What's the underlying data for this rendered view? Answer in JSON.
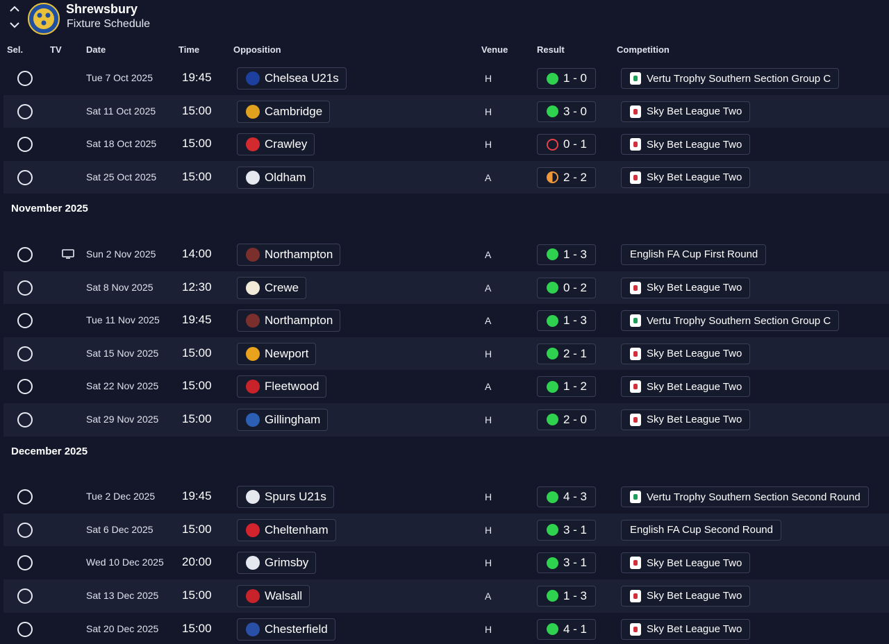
{
  "header": {
    "club_name": "Shrewsbury",
    "page_title": "Fixture Schedule"
  },
  "columns": {
    "sel": "Sel.",
    "tv": "TV",
    "date": "Date",
    "time": "Time",
    "opposition": "Opposition",
    "venue": "Venue",
    "result": "Result",
    "competition": "Competition"
  },
  "colors": {
    "background": "#14172a",
    "row_alt": "#1c2035",
    "win": "#2fd24f",
    "loss": "#e5404a",
    "draw": "#f0973a"
  },
  "sections": [
    {
      "month": "",
      "fixtures": [
        {
          "tv": false,
          "date": "Tue 7 Oct 2025",
          "time": "19:45",
          "opposition": "Chelsea U21s",
          "badge_color": "#1d3f9e",
          "venue": "H",
          "result_type": "win",
          "score": "1 - 0",
          "competition": "Vertu Trophy Southern Section Group C",
          "comp_logo": "vertu"
        },
        {
          "tv": false,
          "date": "Sat 11 Oct 2025",
          "time": "15:00",
          "opposition": "Cambridge",
          "badge_color": "#e0a21e",
          "venue": "H",
          "result_type": "win",
          "score": "3 - 0",
          "competition": "Sky Bet League Two",
          "comp_logo": "skybet"
        },
        {
          "tv": false,
          "date": "Sat 18 Oct 2025",
          "time": "15:00",
          "opposition": "Crawley",
          "badge_color": "#d22a2f",
          "venue": "H",
          "result_type": "loss",
          "score": "0 - 1",
          "competition": "Sky Bet League Two",
          "comp_logo": "skybet"
        },
        {
          "tv": false,
          "date": "Sat 25 Oct 2025",
          "time": "15:00",
          "opposition": "Oldham",
          "badge_color": "#e6e8f0",
          "venue": "A",
          "result_type": "draw",
          "score": "2 - 2",
          "competition": "Sky Bet League Two",
          "comp_logo": "skybet"
        }
      ]
    },
    {
      "month": "November 2025",
      "fixtures": [
        {
          "tv": true,
          "date": "Sun 2 Nov 2025",
          "time": "14:00",
          "opposition": "Northampton",
          "badge_color": "#7a2f2c",
          "venue": "A",
          "result_type": "win",
          "score": "1 - 3",
          "competition": "English FA Cup First Round",
          "comp_logo": "none"
        },
        {
          "tv": false,
          "date": "Sat 8 Nov 2025",
          "time": "12:30",
          "opposition": "Crewe",
          "badge_color": "#f2ead8",
          "venue": "A",
          "result_type": "win",
          "score": "0 - 2",
          "competition": "Sky Bet League Two",
          "comp_logo": "skybet"
        },
        {
          "tv": false,
          "date": "Tue 11 Nov 2025",
          "time": "19:45",
          "opposition": "Northampton",
          "badge_color": "#7a2f2c",
          "venue": "A",
          "result_type": "win",
          "score": "1 - 3",
          "competition": "Vertu Trophy Southern Section Group C",
          "comp_logo": "vertu"
        },
        {
          "tv": false,
          "date": "Sat 15 Nov 2025",
          "time": "15:00",
          "opposition": "Newport",
          "badge_color": "#e9a21b",
          "venue": "H",
          "result_type": "win",
          "score": "2 - 1",
          "competition": "Sky Bet League Two",
          "comp_logo": "skybet"
        },
        {
          "tv": false,
          "date": "Sat 22 Nov 2025",
          "time": "15:00",
          "opposition": "Fleetwood",
          "badge_color": "#c8232b",
          "venue": "A",
          "result_type": "win",
          "score": "1 - 2",
          "competition": "Sky Bet League Two",
          "comp_logo": "skybet"
        },
        {
          "tv": false,
          "date": "Sat 29 Nov 2025",
          "time": "15:00",
          "opposition": "Gillingham",
          "badge_color": "#2a5fb4",
          "venue": "H",
          "result_type": "win",
          "score": "2 - 0",
          "competition": "Sky Bet League Two",
          "comp_logo": "skybet"
        }
      ]
    },
    {
      "month": "December 2025",
      "fixtures": [
        {
          "tv": false,
          "date": "Tue 2 Dec 2025",
          "time": "19:45",
          "opposition": "Spurs U21s",
          "badge_color": "#e6e8f0",
          "venue": "H",
          "result_type": "win",
          "score": "4 - 3",
          "competition": "Vertu Trophy Southern Section Second Round",
          "comp_logo": "vertu"
        },
        {
          "tv": false,
          "date": "Sat 6 Dec 2025",
          "time": "15:00",
          "opposition": "Cheltenham",
          "badge_color": "#d3242e",
          "venue": "H",
          "result_type": "win",
          "score": "3 - 1",
          "competition": "English FA Cup Second Round",
          "comp_logo": "none"
        },
        {
          "tv": false,
          "date": "Wed 10 Dec 2025",
          "time": "20:00",
          "opposition": "Grimsby",
          "badge_color": "#e6e8f0",
          "venue": "H",
          "result_type": "win",
          "score": "3 - 1",
          "competition": "Sky Bet League Two",
          "comp_logo": "skybet"
        },
        {
          "tv": false,
          "date": "Sat 13 Dec 2025",
          "time": "15:00",
          "opposition": "Walsall",
          "badge_color": "#c8232b",
          "venue": "A",
          "result_type": "win",
          "score": "1 - 3",
          "competition": "Sky Bet League Two",
          "comp_logo": "skybet"
        },
        {
          "tv": false,
          "date": "Sat 20 Dec 2025",
          "time": "15:00",
          "opposition": "Chesterfield",
          "badge_color": "#2a4fa6",
          "venue": "H",
          "result_type": "win",
          "score": "4 - 1",
          "competition": "Sky Bet League Two",
          "comp_logo": "skybet"
        }
      ]
    }
  ]
}
